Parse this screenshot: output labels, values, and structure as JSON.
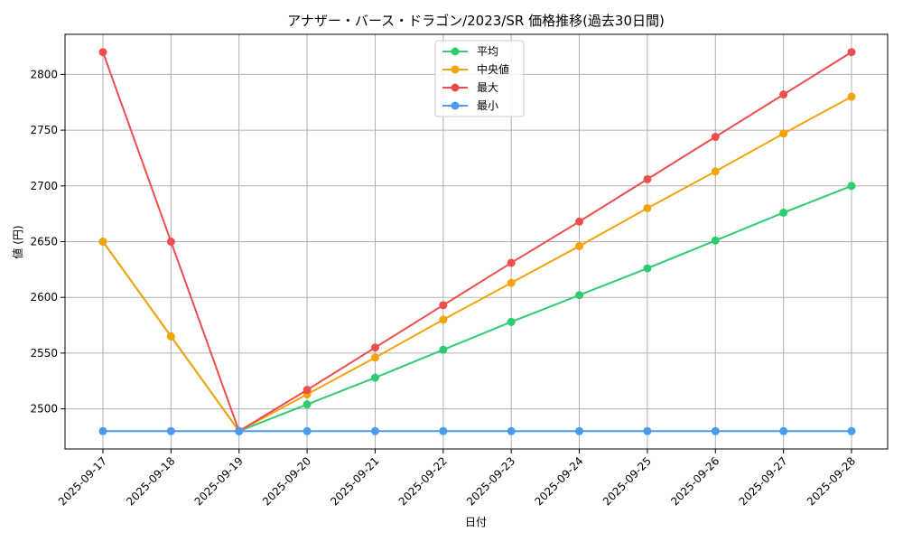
{
  "chart_data": {
    "type": "line",
    "title": "アナザー・バース・ドラゴン/2023/SR 価格推移(過去30日間)",
    "xlabel": "日付",
    "ylabel": "値 (円)",
    "categories": [
      "2025-09-17",
      "2025-09-18",
      "2025-09-19",
      "2025-09-20",
      "2025-09-21",
      "2025-09-22",
      "2025-09-23",
      "2025-09-24",
      "2025-09-25",
      "2025-09-26",
      "2025-09-27",
      "2025-09-28"
    ],
    "yticks": [
      2500,
      2550,
      2600,
      2650,
      2700,
      2750,
      2800
    ],
    "ylim": [
      2464,
      2836
    ],
    "grid": true,
    "legend_position": "top-center",
    "series": [
      {
        "name": "平均",
        "color": "#2ecc71",
        "values": [
          2650,
          2565,
          2480,
          2504,
          2528,
          2553,
          2578,
          2602,
          2626,
          2651,
          2676,
          2700
        ]
      },
      {
        "name": "中央値",
        "color": "#f5a30a",
        "values": [
          2650,
          2565,
          2480,
          2513,
          2546,
          2580,
          2613,
          2646,
          2680,
          2713,
          2747,
          2780
        ]
      },
      {
        "name": "最大",
        "color": "#ef4e4e",
        "values": [
          2820,
          2650,
          2480,
          2517,
          2555,
          2593,
          2631,
          2668,
          2706,
          2744,
          2782,
          2820
        ]
      },
      {
        "name": "最小",
        "color": "#4a9bf0",
        "values": [
          2480,
          2480,
          2480,
          2480,
          2480,
          2480,
          2480,
          2480,
          2480,
          2480,
          2480,
          2480
        ]
      }
    ]
  }
}
